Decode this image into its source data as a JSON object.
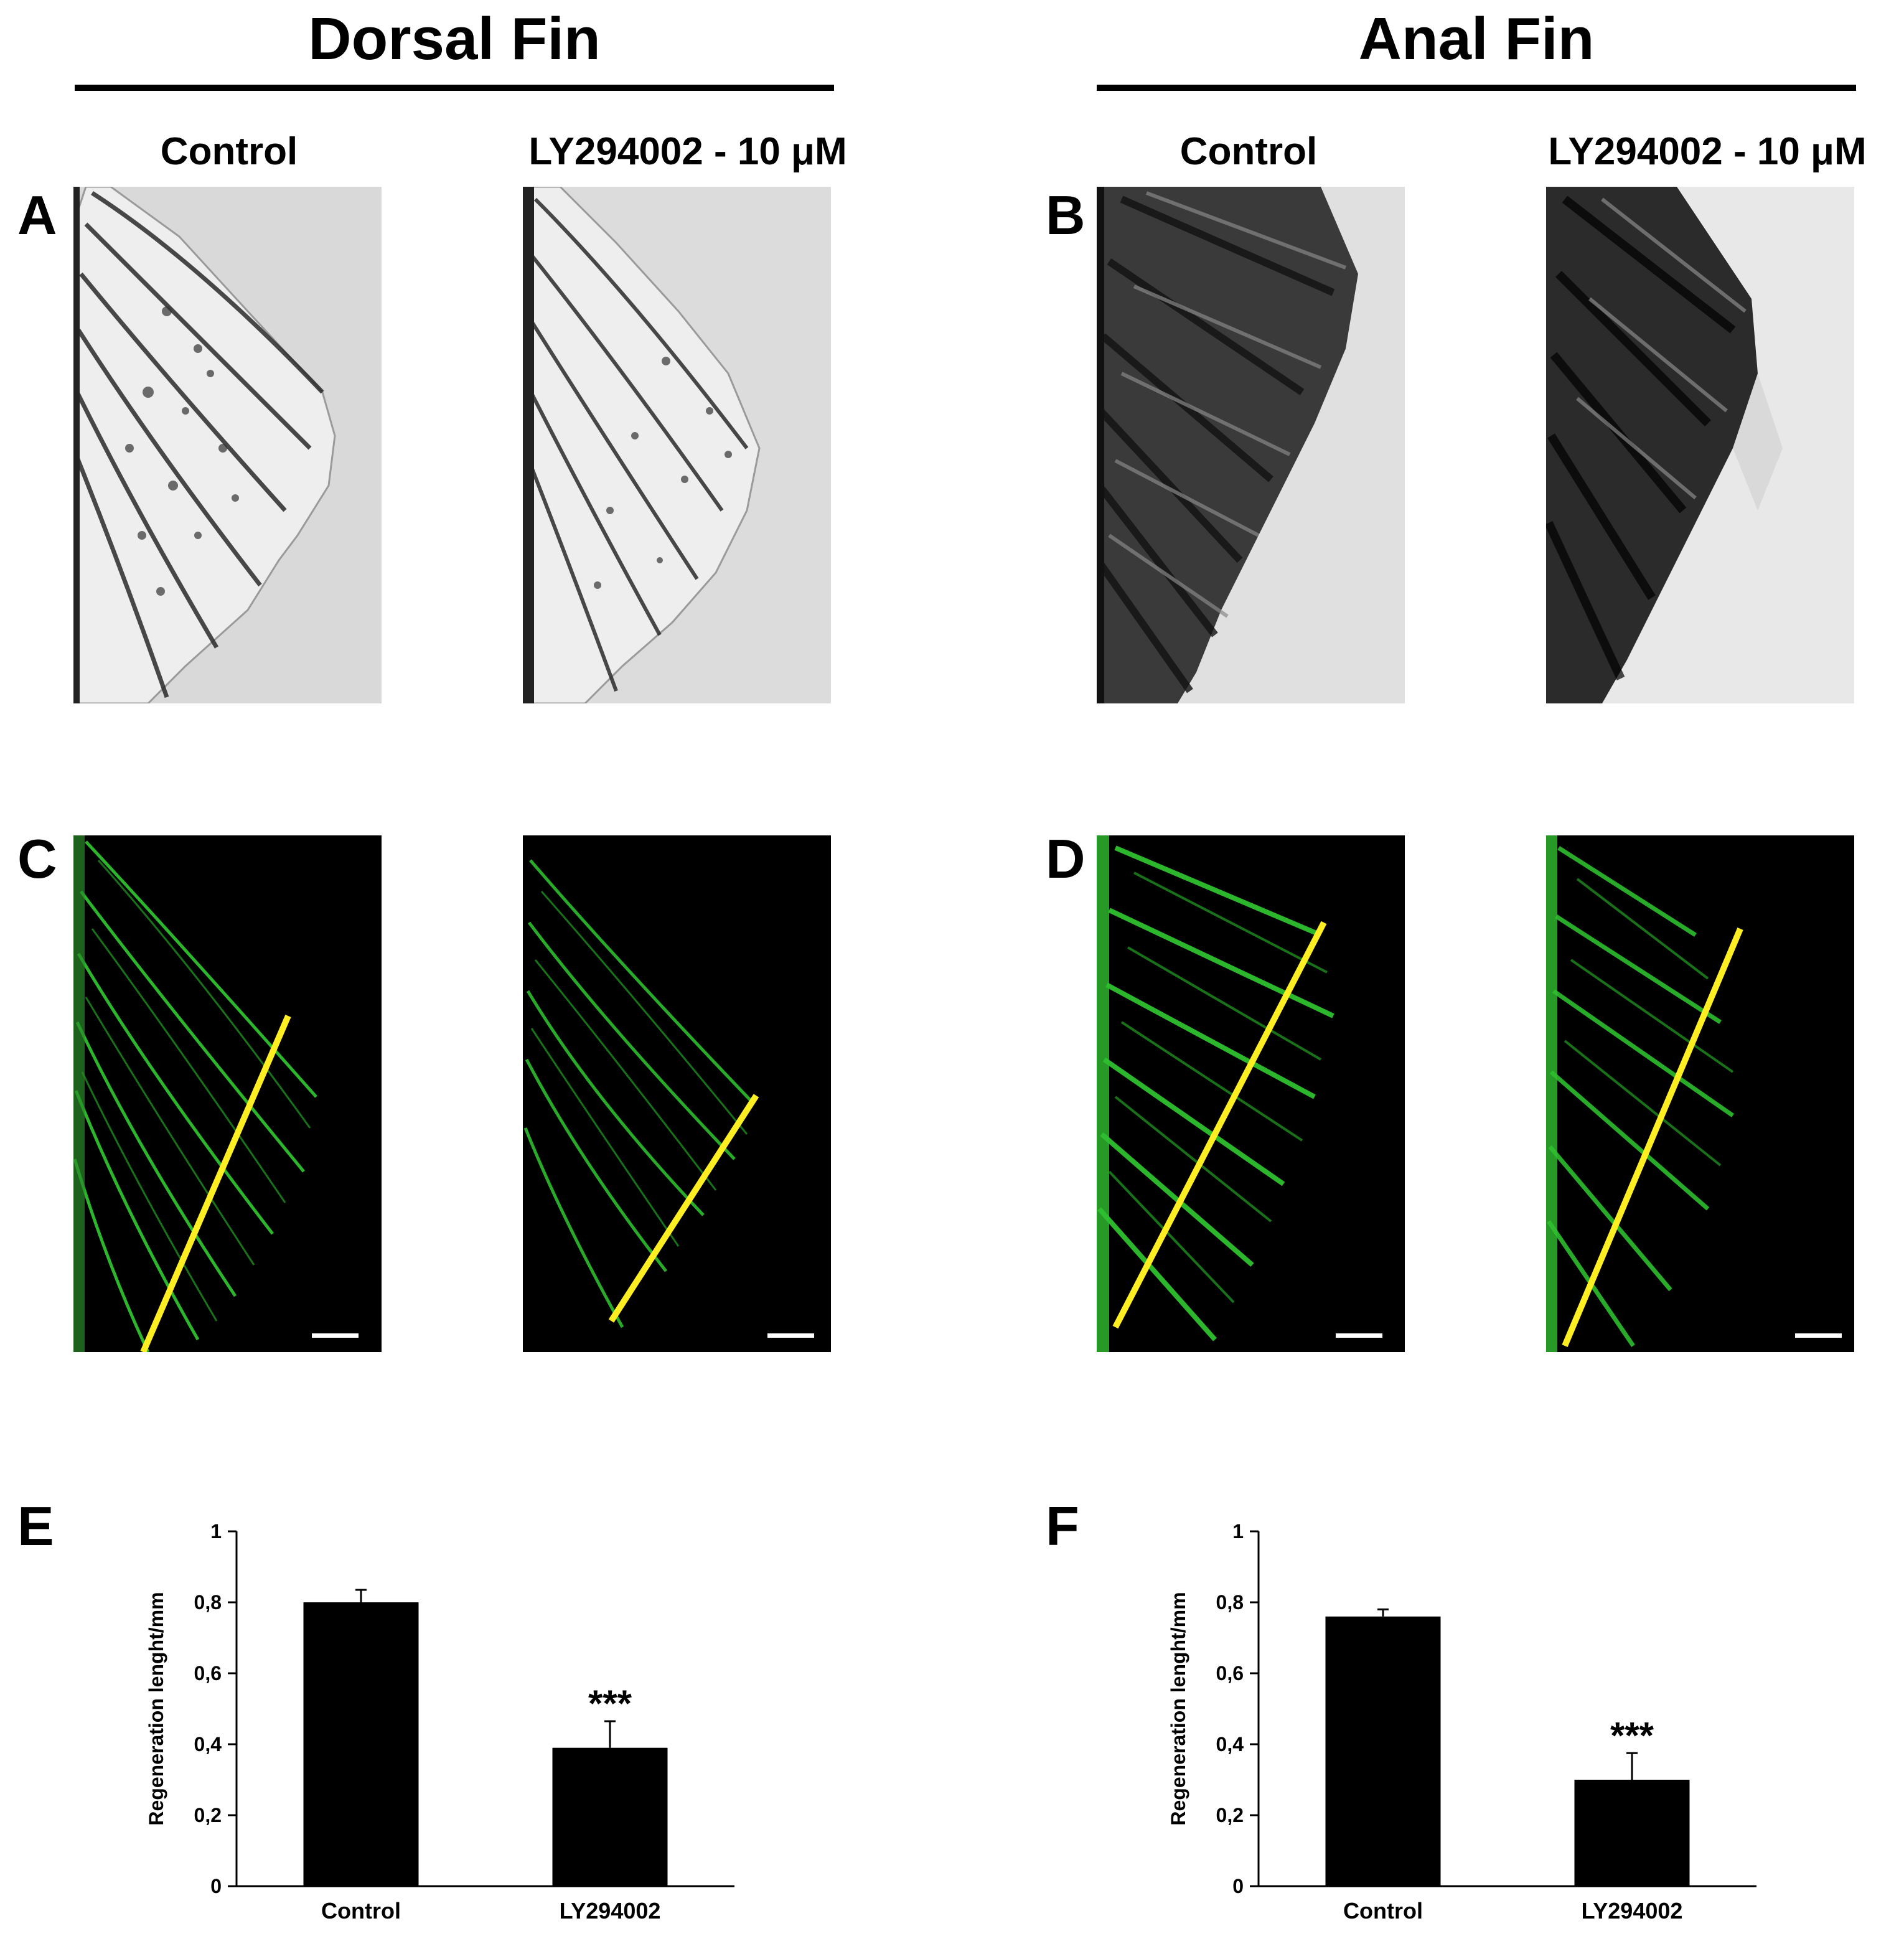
{
  "figure": {
    "headers": {
      "dorsal": "Dorsal Fin",
      "anal": "Anal Fin"
    },
    "column_labels": {
      "control": "Control",
      "treatment": "LY294002 - 10 μM"
    },
    "panel_letters": {
      "A": "A",
      "B": "B",
      "C": "C",
      "D": "D",
      "E": "E",
      "F": "F"
    },
    "colors": {
      "fluorescence": "#33d633",
      "measure_line": "#ffee22",
      "bars": "#000000"
    }
  },
  "chart_data": [
    {
      "panel": "E",
      "type": "bar",
      "categories": [
        "Control",
        "LY294002"
      ],
      "values": [
        0.8,
        0.39
      ],
      "errors": [
        0.035,
        0.075
      ],
      "annotations": [
        "",
        "***"
      ],
      "ylabel": "Regeneration lenght/mm",
      "ylim": [
        0,
        1
      ],
      "yticks": [
        0,
        0.2,
        0.4,
        0.6,
        0.8,
        1
      ],
      "ytick_labels": [
        "0",
        "0,2",
        "0,4",
        "0,6",
        "0,8",
        "1"
      ]
    },
    {
      "panel": "F",
      "type": "bar",
      "categories": [
        "Control",
        "LY294002"
      ],
      "values": [
        0.76,
        0.3
      ],
      "errors": [
        0.02,
        0.075
      ],
      "annotations": [
        "",
        "***"
      ],
      "ylabel": "Regeneration lenght/mm",
      "ylim": [
        0,
        1
      ],
      "yticks": [
        0,
        0.2,
        0.4,
        0.6,
        0.8,
        1
      ],
      "ytick_labels": [
        "0",
        "0,2",
        "0,4",
        "0,6",
        "0,8",
        "1"
      ]
    }
  ]
}
